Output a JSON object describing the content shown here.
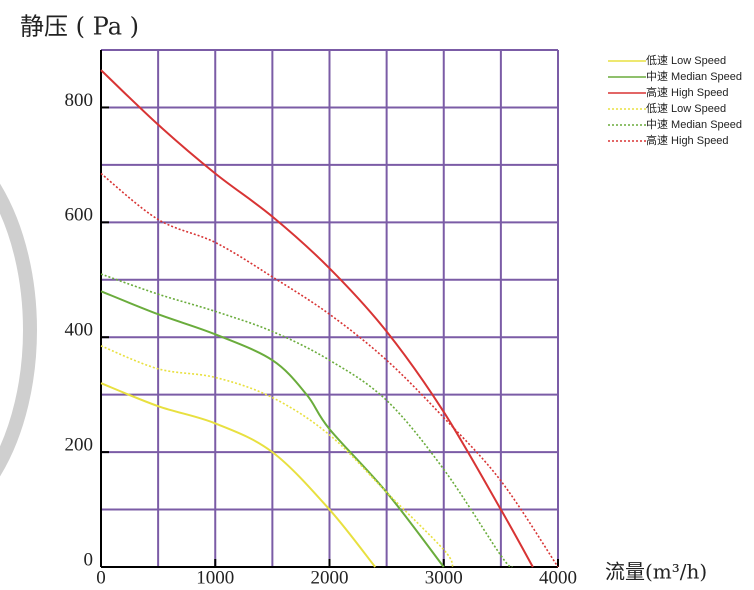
{
  "chart_data": {
    "type": "line",
    "y_label": "静压 ( Pa )",
    "x_label": "流量(m³/h)",
    "xlim": [
      0,
      4000
    ],
    "ylim": [
      0,
      900
    ],
    "xticks": [
      0,
      1000,
      2000,
      3000,
      4000
    ],
    "yticks": [
      0,
      200,
      400,
      600,
      800
    ],
    "xgrid": [
      0,
      500,
      1000,
      1500,
      2000,
      2500,
      3000,
      3500,
      4000
    ],
    "ygrid": [
      0,
      100,
      200,
      300,
      400,
      500,
      600,
      700,
      800,
      900
    ],
    "grid_color": "#7b5ca6",
    "series": [
      {
        "name": "低速 Low Speed",
        "color": "#e8e040",
        "dashed": false,
        "x": [
          0,
          500,
          1000,
          1500,
          2000,
          2400
        ],
        "values": [
          320,
          280,
          250,
          200,
          100,
          0
        ]
      },
      {
        "name": "中速 Median Speed",
        "color": "#6aac3c",
        "dashed": false,
        "x": [
          0,
          500,
          1000,
          1500,
          1800,
          2000,
          2500,
          3000
        ],
        "values": [
          480,
          440,
          405,
          360,
          300,
          240,
          130,
          0
        ]
      },
      {
        "name": "高速 High Speed",
        "color": "#d83434",
        "dashed": false,
        "x": [
          0,
          500,
          1000,
          1500,
          2000,
          2500,
          3000,
          3500,
          3780
        ],
        "values": [
          865,
          770,
          685,
          610,
          520,
          410,
          270,
          100,
          0
        ]
      },
      {
        "name": "低速 Low Speed",
        "color": "#e8e040",
        "dashed": true,
        "x": [
          0,
          500,
          1000,
          1500,
          2000,
          2500,
          3000,
          3080
        ],
        "values": [
          385,
          345,
          330,
          295,
          230,
          130,
          30,
          0
        ]
      },
      {
        "name": "中速 Median Speed",
        "color": "#6aac3c",
        "dashed": true,
        "x": [
          0,
          500,
          1000,
          1500,
          2000,
          2500,
          3000,
          3500,
          3600
        ],
        "values": [
          510,
          475,
          445,
          410,
          360,
          290,
          170,
          20,
          0
        ]
      },
      {
        "name": "高速 High Speed",
        "color": "#d83434",
        "dashed": true,
        "x": [
          0,
          500,
          1000,
          1500,
          2000,
          2500,
          3000,
          3500,
          4000
        ],
        "values": [
          685,
          605,
          565,
          505,
          440,
          360,
          260,
          150,
          0
        ]
      }
    ]
  }
}
